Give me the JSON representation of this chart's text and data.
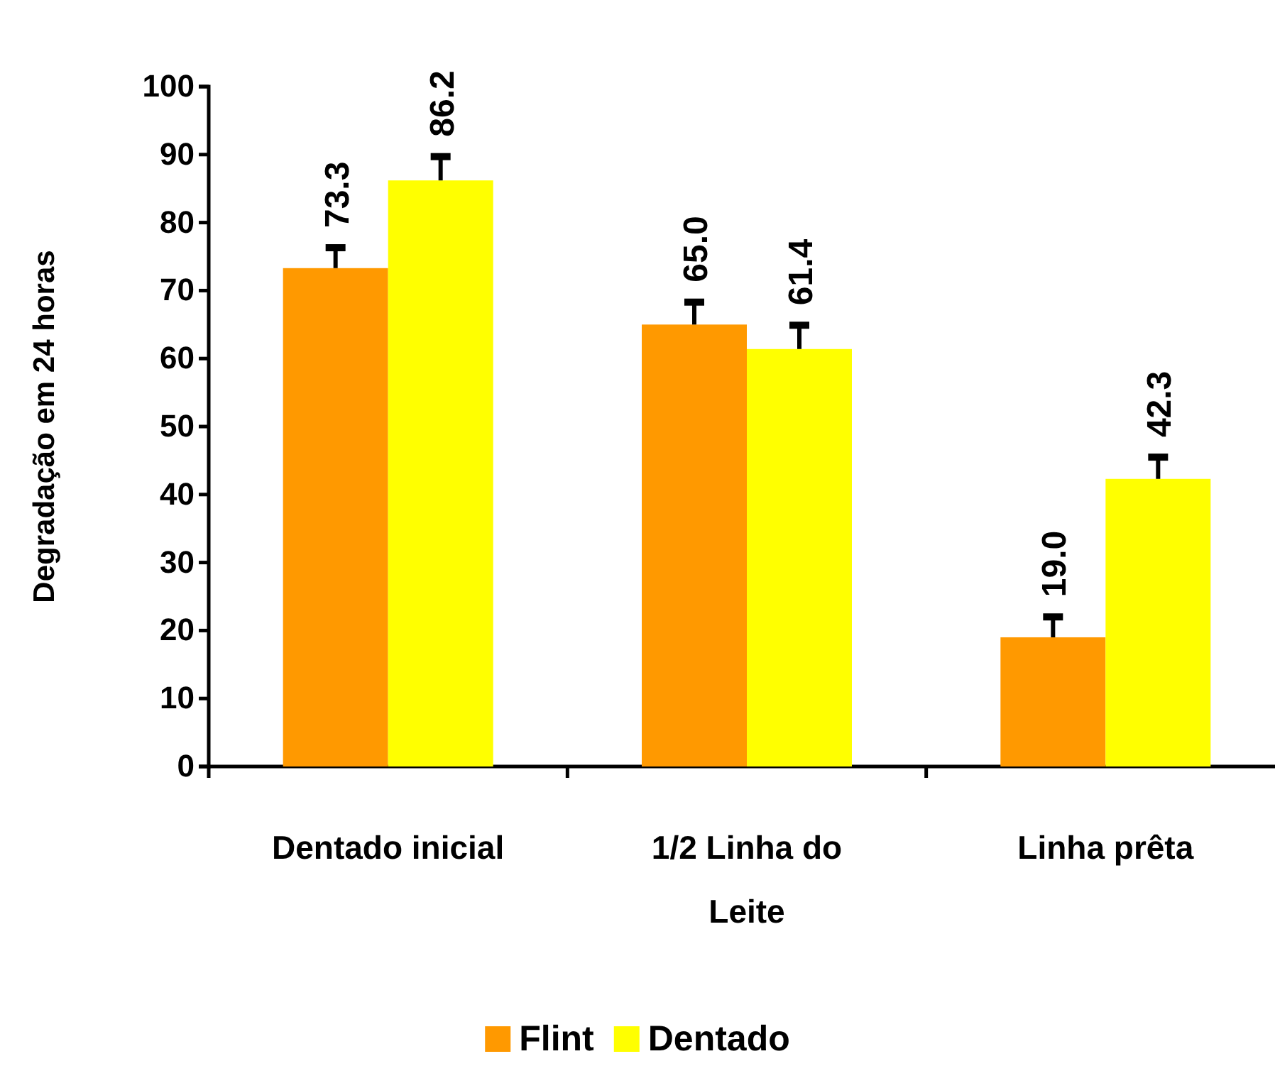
{
  "chart_data": {
    "type": "bar",
    "ylabel": "Degradação em 24 horas",
    "categories": [
      "Dentado inicial",
      "1/2 Linha do Leite",
      "Linha prêta"
    ],
    "series": [
      {
        "name": "Flint",
        "color": "#ff9900",
        "values": [
          73.3,
          65.0,
          19.0
        ],
        "errors": [
          [
            73.3,
            76.3
          ],
          [
            65.0,
            68.3
          ],
          [
            19.0,
            22.0
          ]
        ],
        "value_labels": [
          "73.3",
          "65.0",
          "19.0"
        ]
      },
      {
        "name": "Dentado",
        "color": "#ffff00",
        "values": [
          86.2,
          61.4,
          42.3
        ],
        "errors": [
          [
            86.2,
            89.7
          ],
          [
            61.4,
            64.9
          ],
          [
            42.3,
            45.5
          ]
        ],
        "value_labels": [
          "86.2",
          "61.4",
          "42.3"
        ]
      }
    ],
    "ylim": [
      0,
      100
    ],
    "yticks": [
      0,
      10,
      20,
      30,
      40,
      50,
      60,
      70,
      80,
      90,
      100
    ],
    "grid": false,
    "legend": "bottom"
  }
}
